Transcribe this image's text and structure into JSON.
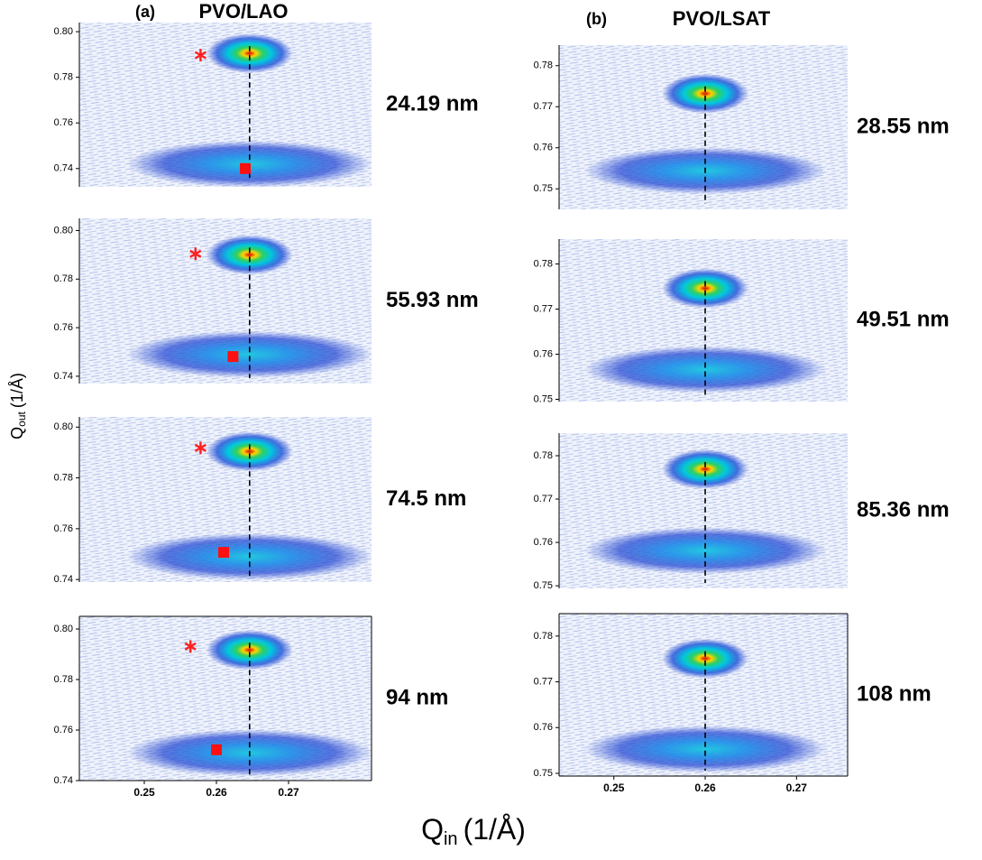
{
  "figure": {
    "x_label": {
      "main": "Q",
      "sub": "in",
      "unit": "(1/Å)"
    },
    "y_label": {
      "main": "Q",
      "sub": "out",
      "unit": "(1/Å)"
    }
  },
  "chart_data": [
    {
      "type": "rsm",
      "panel_label": "(a)",
      "title": "PVO/LAO",
      "annotation": "24.19 nm",
      "xlim": [
        0.241,
        0.2815
      ],
      "ylim": [
        0.732,
        0.804
      ],
      "yticks": [
        {
          "value": 0.8,
          "label": "0.80"
        },
        0.78,
        0.76,
        0.74
      ],
      "film_peak": [
        0.2646,
        0.7905
      ],
      "substrate_peak": [
        0.2646,
        0.742
      ],
      "star": [
        0.2578,
        0.7897
      ],
      "square": [
        0.264,
        0.74
      ]
    },
    {
      "type": "rsm",
      "annotation": "55.93 nm",
      "xlim": [
        0.241,
        0.2815
      ],
      "ylim": [
        0.737,
        0.805
      ],
      "yticks": [
        {
          "value": 0.8,
          "label": "0.80"
        },
        0.78,
        0.76,
        0.74
      ],
      "film_peak": [
        0.2646,
        0.79
      ],
      "substrate_peak": [
        0.2646,
        0.749
      ],
      "star": [
        0.2571,
        0.7904
      ],
      "square": [
        0.2623,
        0.7481
      ]
    },
    {
      "type": "rsm",
      "annotation": "74.5 nm",
      "xlim": [
        0.241,
        0.2815
      ],
      "ylim": [
        0.739,
        0.804
      ],
      "yticks": [
        {
          "value": 0.8,
          "label": "0.80"
        },
        0.78,
        0.76,
        0.74
      ],
      "film_peak": [
        0.2646,
        0.7904
      ],
      "substrate_peak": [
        0.2646,
        0.749
      ],
      "star": [
        0.2578,
        0.7918
      ],
      "square": [
        0.261,
        0.7507
      ]
    },
    {
      "type": "rsm",
      "annotation": "94 nm",
      "xlim": [
        0.241,
        0.2815
      ],
      "ylim": [
        0.74,
        0.805
      ],
      "yticks": [
        {
          "value": 0.8,
          "label": "0.80"
        },
        0.78,
        0.76,
        0.74
      ],
      "xticks": [
        0.25,
        0.26,
        0.27
      ],
      "film_peak": [
        0.2646,
        0.7917
      ],
      "substrate_peak": [
        0.2646,
        0.751
      ],
      "star": [
        0.2564,
        0.7931
      ],
      "square": [
        0.26,
        0.7522
      ]
    },
    {
      "type": "rsm",
      "panel_label": "(b)",
      "title": "PVO/LSAT",
      "annotation": "28.55 nm",
      "xlim": [
        0.244,
        0.2756
      ],
      "ylim": [
        0.745,
        0.785
      ],
      "yticks": [
        0.78,
        0.77,
        0.76,
        0.75
      ],
      "film_peak": [
        0.26,
        0.7732
      ],
      "substrate_peak": [
        0.26,
        0.7544
      ]
    },
    {
      "type": "rsm",
      "annotation": "49.51 nm",
      "xlim": [
        0.244,
        0.2756
      ],
      "ylim": [
        0.7495,
        0.7855
      ],
      "yticks": [
        0.78,
        0.77,
        0.76,
        0.75
      ],
      "film_peak": [
        0.26,
        0.7746
      ],
      "substrate_peak": [
        0.26,
        0.7566
      ]
    },
    {
      "type": "rsm",
      "annotation": "85.36 nm",
      "xlim": [
        0.244,
        0.2756
      ],
      "ylim": [
        0.7494,
        0.7852
      ],
      "yticks": [
        0.78,
        0.77,
        0.76,
        0.75
      ],
      "film_peak": [
        0.26,
        0.7769
      ],
      "substrate_peak": [
        0.26,
        0.7581
      ]
    },
    {
      "type": "rsm",
      "annotation": "108 nm",
      "xlim": [
        0.244,
        0.2756
      ],
      "ylim": [
        0.7494,
        0.7849
      ],
      "yticks": [
        0.78,
        0.77,
        0.76,
        0.75
      ],
      "xticks": [
        0.25,
        0.26,
        0.27
      ],
      "film_peak": [
        0.26,
        0.7751
      ],
      "substrate_peak": [
        0.26,
        0.7553
      ]
    }
  ]
}
